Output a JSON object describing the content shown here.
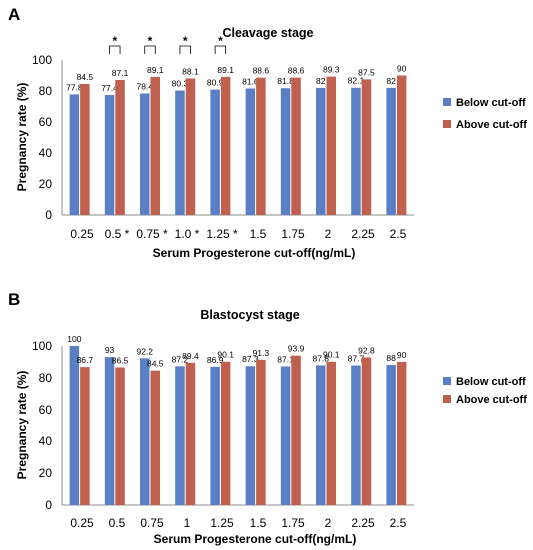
{
  "colors": {
    "below": "#5B7FC4",
    "above": "#C0604E",
    "axis": "#8c8c8c",
    "text": "#000000"
  },
  "chart_data": [
    {
      "type": "bar",
      "panel": "A",
      "title": "Cleavage stage",
      "xlabel": "Serum Progesterone cut-off(ng/mL)",
      "ylabel": "Pregnancy rate (%)",
      "ylim": [
        0,
        100
      ],
      "yticks": [
        "0",
        "20",
        "40",
        "60",
        "80",
        "100"
      ],
      "categories": [
        "0.25",
        "0.5 *",
        "0.75 *",
        "1.0 *",
        "1.25 *",
        "1.5",
        "1.75",
        "2",
        "2.25",
        "2.5"
      ],
      "series": [
        {
          "name": "Below cut-off",
          "values": [
            77.8,
            77.4,
            78.4,
            80.3,
            80.9,
            81.6,
            81.8,
            82,
            82.1,
            82
          ]
        },
        {
          "name": "Above cut-off",
          "values": [
            84.5,
            87.1,
            89.1,
            88.1,
            89.1,
            88.6,
            88.6,
            89.3,
            87.5,
            90
          ]
        }
      ],
      "significance": [
        "",
        "*",
        "*",
        "*",
        "*",
        "",
        "",
        "",
        "",
        ""
      ],
      "legend": "right",
      "grid": false
    },
    {
      "type": "bar",
      "panel": "B",
      "title": "Blastocyst stage",
      "xlabel": "Serum Progesterone cut-off(ng/mL)",
      "ylabel": "Pregnancy rate (%)",
      "ylim": [
        0,
        100
      ],
      "yticks": [
        "0",
        "20",
        "40",
        "60",
        "80",
        "100"
      ],
      "categories": [
        "0.25",
        "0.5",
        "0.75",
        "1",
        "1.25",
        "1.5",
        "1.75",
        "2",
        "2.25",
        "2.5"
      ],
      "series": [
        {
          "name": "Below cut-off",
          "values": [
            100,
            93,
            92.2,
            87.2,
            86.9,
            87.3,
            87.1,
            87.8,
            87.7,
            88
          ]
        },
        {
          "name": "Above cut-off",
          "values": [
            86.7,
            86.5,
            84.5,
            89.4,
            90.1,
            91.3,
            93.9,
            90.1,
            92.8,
            90
          ]
        }
      ],
      "significance": [
        "",
        "",
        "",
        "",
        "",
        "",
        "",
        "",
        "",
        ""
      ],
      "legend": "right",
      "grid": false
    }
  ]
}
